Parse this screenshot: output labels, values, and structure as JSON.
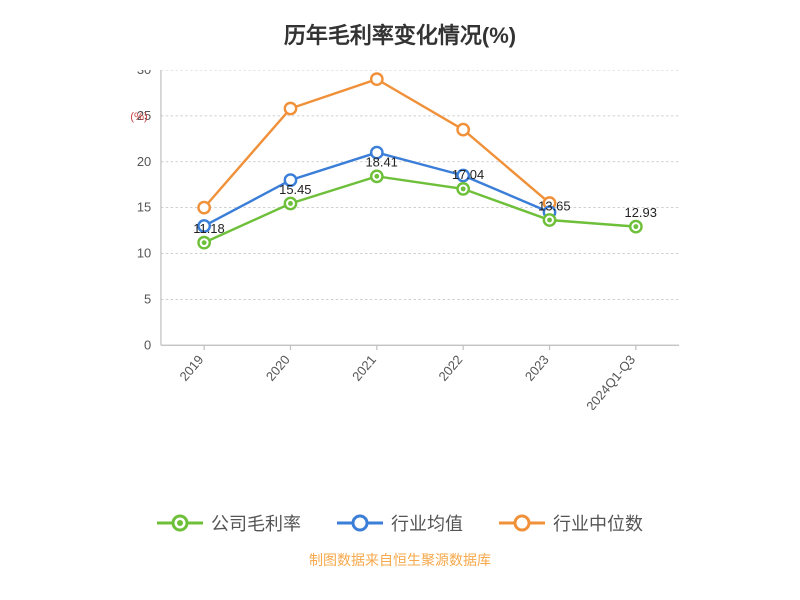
{
  "chart": {
    "type": "line",
    "title": "历年毛利率变化情况(%)",
    "title_fontsize": 22,
    "ylabel": "(%)",
    "ylabel_color": "#c44444",
    "background_color": "#ffffff",
    "grid_color": "#bfbfbf",
    "axis_color": "#bfbfbf",
    "label_fontsize": 16,
    "categories": [
      "2019",
      "2020",
      "2021",
      "2022",
      "2023",
      "2024Q1-Q3"
    ],
    "ylim": [
      0,
      30
    ],
    "ytick_step": 5,
    "yticks": [
      0,
      5,
      10,
      15,
      20,
      25,
      30
    ],
    "series": [
      {
        "name": "公司毛利率",
        "color": "#6ebf3a",
        "marker": "circle",
        "marker_fill": "#6ebf3a",
        "marker_inner": "#ffffff",
        "values": [
          11.18,
          15.45,
          18.41,
          17.04,
          13.65,
          12.93
        ],
        "show_labels": true
      },
      {
        "name": "行业均值",
        "color": "#3a7ed8",
        "marker": "circle",
        "marker_fill": "#ffffff",
        "values": [
          13.0,
          18.0,
          21.0,
          18.5,
          14.5,
          null
        ],
        "show_labels": false
      },
      {
        "name": "行业中位数",
        "color": "#f0913a",
        "marker": "circle",
        "marker_fill": "#ffffff",
        "values": [
          15.0,
          25.8,
          29.0,
          23.5,
          15.5,
          null
        ],
        "show_labels": false
      }
    ],
    "source_text": "制图数据来自恒生聚源数据库",
    "source_color": "#f7a84b",
    "line_width": 3,
    "marker_radius_outer": 7,
    "marker_radius_inner": 3
  }
}
